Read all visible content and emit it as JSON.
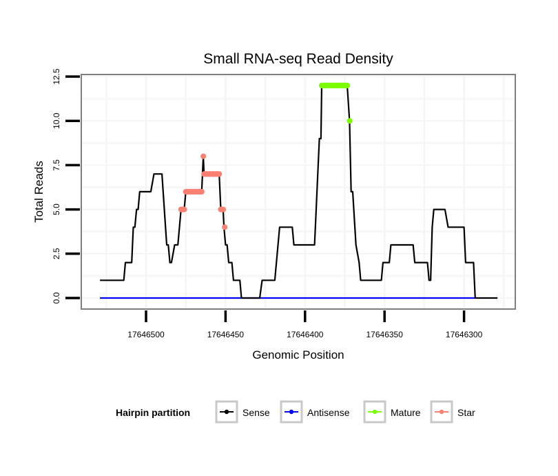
{
  "chart_data": {
    "type": "line",
    "title": "Small RNA-seq Read Density",
    "xlabel": "Genomic Position",
    "ylabel": "Total Reads",
    "x_reversed": true,
    "xlim": [
      17646529,
      17646279
    ],
    "ylim": [
      0,
      12.5
    ],
    "x_ticks": [
      17646500,
      17646450,
      17646400,
      17646350,
      17646300
    ],
    "x_tick_labels": [
      "17646500",
      "17646450",
      "17646400",
      "17646350",
      "17646300"
    ],
    "y_ticks": [
      0,
      2.5,
      5,
      7.5,
      10,
      12.5
    ],
    "y_tick_labels": [
      "0.0",
      "2.5",
      "5.0",
      "7.5",
      "10.0",
      "12.5"
    ],
    "grid": true,
    "legend": {
      "title": "Hairpin partition",
      "position": "bottom",
      "entries": [
        {
          "name": "Sense",
          "color": "#000000"
        },
        {
          "name": "Antisense",
          "color": "#0000ff"
        },
        {
          "name": "Mature",
          "color": "#7cfc00"
        },
        {
          "name": "Star",
          "color": "#fa8072"
        }
      ]
    },
    "series": [
      {
        "name": "Sense",
        "color": "#000000",
        "points": [
          [
            17646529,
            1
          ],
          [
            17646514,
            1
          ],
          [
            17646513,
            2
          ],
          [
            17646509,
            2
          ],
          [
            17646508,
            4
          ],
          [
            17646507,
            4
          ],
          [
            17646506,
            5
          ],
          [
            17646505,
            5
          ],
          [
            17646504,
            6
          ],
          [
            17646497,
            6
          ],
          [
            17646495,
            7
          ],
          [
            17646490,
            7
          ],
          [
            17646487,
            3
          ],
          [
            17646486,
            3
          ],
          [
            17646485,
            2
          ],
          [
            17646484,
            2
          ],
          [
            17646482,
            3
          ],
          [
            17646480,
            3
          ],
          [
            17646478,
            5
          ],
          [
            17646476,
            5
          ],
          [
            17646475,
            6
          ],
          [
            17646465,
            6
          ],
          [
            17646464,
            8
          ],
          [
            17646463.5,
            7
          ],
          [
            17646454,
            7
          ],
          [
            17646453,
            5
          ],
          [
            17646451.5,
            5
          ],
          [
            17646451,
            4
          ],
          [
            17646450,
            3
          ],
          [
            17646449,
            3
          ],
          [
            17646448,
            2
          ],
          [
            17646446,
            2
          ],
          [
            17646445,
            1
          ],
          [
            17646441,
            1
          ],
          [
            17646440,
            0
          ],
          [
            17646428.5,
            0
          ],
          [
            17646427,
            1
          ],
          [
            17646419,
            1
          ],
          [
            17646416,
            4
          ],
          [
            17646408,
            4
          ],
          [
            17646407,
            3
          ],
          [
            17646394,
            3
          ],
          [
            17646393.5,
            4
          ],
          [
            17646391,
            9
          ],
          [
            17646390,
            9
          ],
          [
            17646389.5,
            12
          ],
          [
            17646373.5,
            12
          ],
          [
            17646372,
            10
          ],
          [
            17646371,
            6
          ],
          [
            17646370,
            6
          ],
          [
            17646368,
            3
          ],
          [
            17646366,
            2
          ],
          [
            17646365,
            1
          ],
          [
            17646352,
            1
          ],
          [
            17646351,
            2
          ],
          [
            17646347,
            2
          ],
          [
            17646346,
            3
          ],
          [
            17646332,
            3
          ],
          [
            17646331,
            2
          ],
          [
            17646323,
            2
          ],
          [
            17646322,
            1
          ],
          [
            17646321,
            1
          ],
          [
            17646320,
            4
          ],
          [
            17646319,
            5
          ],
          [
            17646312,
            5
          ],
          [
            17646310,
            4
          ],
          [
            17646300,
            4
          ],
          [
            17646299,
            2
          ],
          [
            17646294,
            2
          ],
          [
            17646293,
            0
          ],
          [
            17646279,
            0
          ]
        ]
      },
      {
        "name": "Antisense",
        "color": "#0000ff",
        "points": [
          [
            17646529,
            0
          ],
          [
            17646293,
            0
          ]
        ]
      },
      {
        "name": "Mature",
        "color": "#7cfc00",
        "points": [
          [
            17646389.5,
            12
          ],
          [
            17646388,
            12
          ],
          [
            17646386,
            12
          ],
          [
            17646384,
            12
          ],
          [
            17646382,
            12
          ],
          [
            17646380,
            12
          ],
          [
            17646378,
            12
          ],
          [
            17646376,
            12
          ],
          [
            17646374,
            12
          ],
          [
            17646373.5,
            12
          ],
          [
            17646372,
            10
          ]
        ]
      },
      {
        "name": "Star",
        "color": "#fa8072",
        "points": [
          [
            17646478,
            5
          ],
          [
            17646477,
            5
          ],
          [
            17646476,
            5
          ],
          [
            17646475,
            6
          ],
          [
            17646474,
            6
          ],
          [
            17646472,
            6
          ],
          [
            17646470,
            6
          ],
          [
            17646468,
            6
          ],
          [
            17646466,
            6
          ],
          [
            17646465,
            6
          ],
          [
            17646464,
            8
          ],
          [
            17646463.5,
            7
          ],
          [
            17646462,
            7
          ],
          [
            17646460,
            7
          ],
          [
            17646458,
            7
          ],
          [
            17646456,
            7
          ],
          [
            17646454,
            7
          ],
          [
            17646453,
            5
          ],
          [
            17646452,
            5
          ],
          [
            17646451.5,
            5
          ],
          [
            17646450.5,
            4
          ]
        ]
      }
    ]
  }
}
